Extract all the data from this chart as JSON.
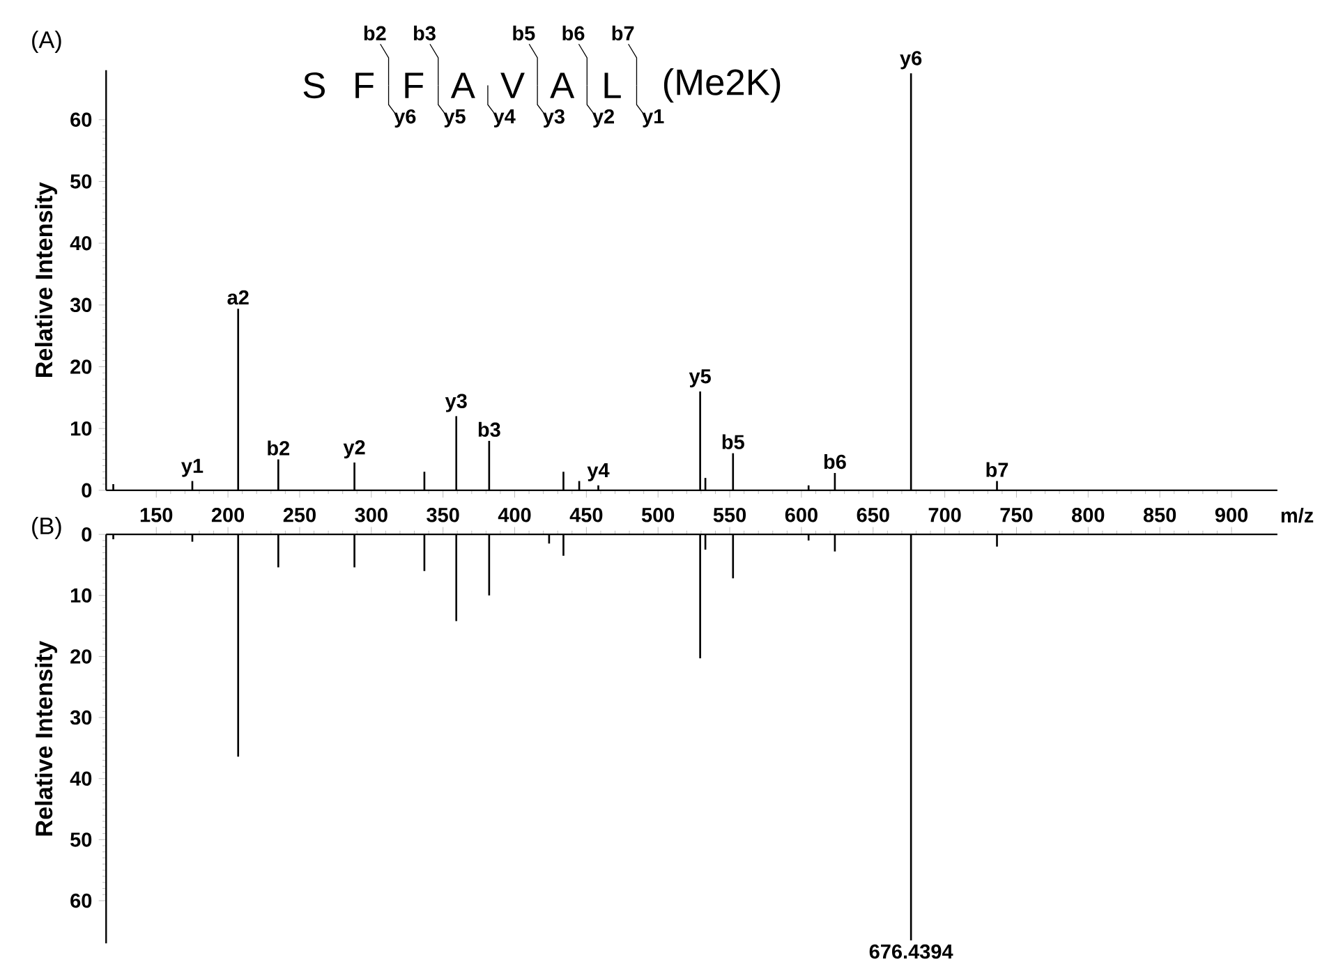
{
  "chart_data": [
    {
      "type": "bar",
      "ylabel": "Relative Intensity",
      "xlabel": "m/z",
      "color": "#000000",
      "x": [
        120,
        175.14,
        207.11,
        235.11,
        288.22,
        337,
        359.26,
        382.18,
        434,
        445,
        458.33,
        529.37,
        533,
        552.29,
        605,
        623.33,
        676.4394,
        736.41
      ],
      "values": [
        1.0,
        1.5,
        29.4,
        5,
        4.5,
        3,
        12,
        8,
        3,
        1.5,
        0.8,
        16,
        2,
        6,
        0.8,
        2.8,
        67.5,
        1.5
      ],
      "xlim": [
        115,
        932
      ],
      "ylim": [
        0,
        68
      ],
      "xticks": [
        150,
        200,
        250,
        300,
        350,
        400,
        450,
        500,
        550,
        600,
        650,
        700,
        750,
        800,
        850,
        900
      ],
      "yticks": [
        0,
        10,
        20,
        30,
        40,
        50,
        60
      ],
      "annotations": [
        "(A)",
        "S",
        "F",
        "F",
        "A",
        "V",
        "A",
        "L",
        "(Me2K)",
        "b2",
        "b3",
        "b5",
        "b6",
        "b7",
        "y6",
        "y5",
        "y4",
        "y3",
        "y2",
        "y1",
        {
          "text": "y1",
          "x": 175.14,
          "y": 1.5
        },
        {
          "text": "a2",
          "x": 207.11,
          "y": 29.4
        },
        {
          "text": "b2",
          "x": 235.11,
          "y": 5
        },
        {
          "text": "y2",
          "x": 288.22,
          "y": 4.5
        },
        {
          "text": "y3",
          "x": 359.26,
          "y": 12
        },
        {
          "text": "b3",
          "x": 382.18,
          "y": 8
        },
        {
          "text": "y4",
          "x": 458.33,
          "y": 0.8
        },
        {
          "text": "y5",
          "x": 529.37,
          "y": 16
        },
        {
          "text": "b5",
          "x": 552.29,
          "y": 6
        },
        {
          "text": "b6",
          "x": 623.33,
          "y": 2.8
        },
        {
          "text": "y6",
          "x": 676.4394,
          "y": 67.5
        },
        {
          "text": "b7",
          "x": 736.41,
          "y": 1.5
        }
      ]
    },
    {
      "type": "bar",
      "ylabel": "Relative Intensity",
      "color": "#000000",
      "x": [
        120,
        175.14,
        207.11,
        235.11,
        288.22,
        337,
        359.26,
        382.18,
        424,
        434,
        529.37,
        533,
        552.29,
        605,
        623.33,
        676.4394,
        736.41
      ],
      "values": [
        0.8,
        1.2,
        36.4,
        5.4,
        5.4,
        6,
        14.2,
        10,
        1.5,
        3.5,
        20.3,
        2.5,
        7.2,
        1,
        2.8,
        66.5,
        2
      ],
      "xlim": [
        115,
        932
      ],
      "ylim": [
        67,
        0
      ],
      "xticks": [
        150,
        200,
        250,
        300,
        350,
        400,
        450,
        500,
        550,
        600,
        650,
        700,
        750,
        800,
        850,
        900
      ],
      "yticks": [
        0,
        10,
        20,
        30,
        40,
        50,
        60
      ],
      "tick_labels": "y",
      "annotations": [
        "(B)",
        {
          "text": "676.4394",
          "x": 676.4394,
          "y": 66.5
        }
      ]
    }
  ]
}
